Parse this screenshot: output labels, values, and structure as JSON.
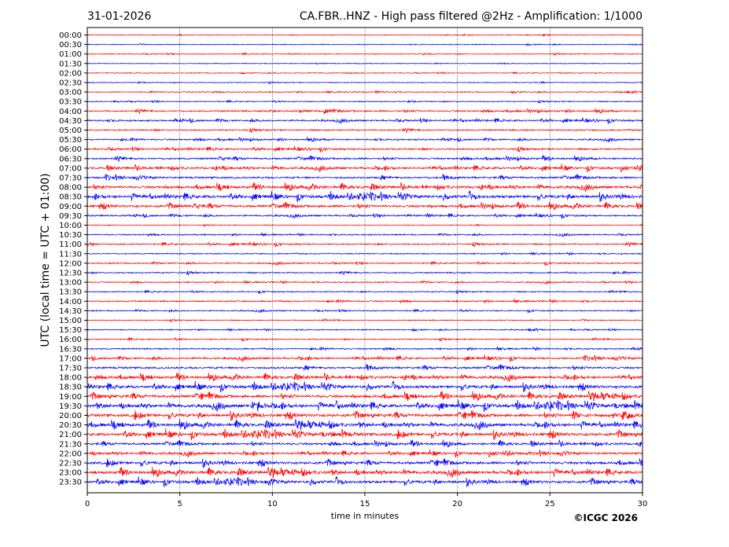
{
  "header": {
    "date": "31-01-2026",
    "title": "CA.FBR..HNZ - High pass filtered @2Hz - Amplification: 1/1000"
  },
  "footer": {
    "copyright": "©ICGC 2026"
  },
  "chart_data": {
    "type": "line",
    "title": "CA.FBR..HNZ - High pass filtered @2Hz - Amplification: 1/1000",
    "xlabel": "time in minutes",
    "ylabel": "UTC (local time = UTC + 01:00)",
    "xlim": [
      0,
      30
    ],
    "x_ticks": [
      0,
      5,
      10,
      15,
      20,
      25,
      30
    ],
    "x_tick_labels": [
      "0",
      "5",
      "10",
      "15",
      "20",
      "25",
      "30"
    ],
    "vertical_gridlines": [
      5,
      10,
      15,
      20,
      25
    ],
    "row_labels": [
      "00:00",
      "00:30",
      "01:00",
      "01:30",
      "02:00",
      "02:30",
      "03:00",
      "03:30",
      "04:00",
      "04:30",
      "05:00",
      "05:30",
      "06:00",
      "06:30",
      "07:00",
      "07:30",
      "08:00",
      "08:30",
      "09:00",
      "09:30",
      "10:00",
      "10:30",
      "11:00",
      "11:30",
      "12:00",
      "12:30",
      "13:00",
      "13:30",
      "14:00",
      "14:30",
      "15:00",
      "15:30",
      "16:00",
      "16:30",
      "17:00",
      "17:30",
      "18:00",
      "18:30",
      "19:00",
      "19:30",
      "20:00",
      "20:30",
      "21:00",
      "21:30",
      "22:00",
      "22:30",
      "23:00",
      "23:30"
    ],
    "row_colors": [
      "#ff0000",
      "#0000ff"
    ],
    "row_activity": [
      0.3,
      0.35,
      0.4,
      0.3,
      0.35,
      0.35,
      0.45,
      0.5,
      0.9,
      1.0,
      0.8,
      0.9,
      1.0,
      1.1,
      1.3,
      1.2,
      1.6,
      1.8,
      1.5,
      0.9,
      0.35,
      0.7,
      0.8,
      0.6,
      0.7,
      0.7,
      0.6,
      0.6,
      0.8,
      0.6,
      0.5,
      0.5,
      0.6,
      0.8,
      1.1,
      1.3,
      1.6,
      1.8,
      1.8,
      2.0,
      1.9,
      1.9,
      1.9,
      1.4,
      1.3,
      1.7,
      1.9,
      1.7
    ],
    "grid": true,
    "legend": "none"
  }
}
